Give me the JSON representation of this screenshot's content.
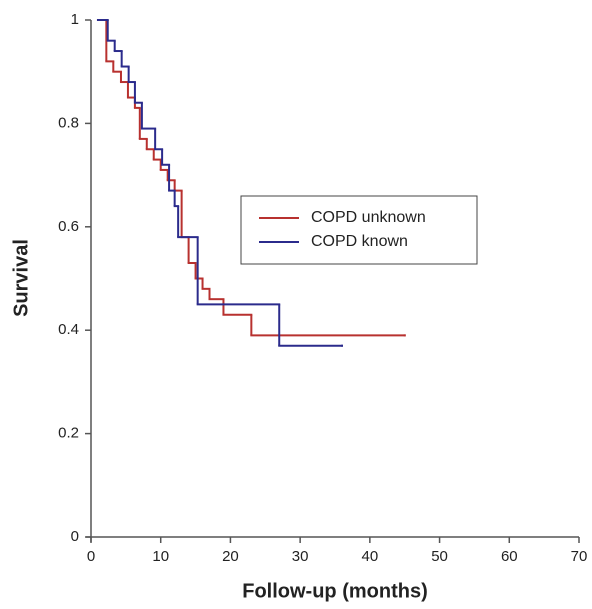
{
  "chart_data": {
    "type": "step",
    "xlabel": "Follow-up (months)",
    "ylabel": "Survival",
    "xlim": [
      0,
      70
    ],
    "xticks": [
      0,
      10,
      20,
      30,
      40,
      50,
      60,
      70
    ],
    "ylim": [
      0,
      1
    ],
    "yticks": [
      0,
      0.2,
      0.4,
      0.6,
      0.8,
      1
    ],
    "legend": "center",
    "series": [
      {
        "name": "COPD unknown",
        "color": "#b8312f",
        "x": [
          1,
          2.2,
          3.2,
          4.3,
          5.3,
          6.3,
          7,
          8,
          9,
          10,
          11,
          12,
          13,
          14,
          15,
          16,
          17,
          19,
          23,
          45
        ],
        "values": [
          1,
          0.92,
          0.9,
          0.88,
          0.85,
          0.83,
          0.77,
          0.75,
          0.73,
          0.71,
          0.69,
          0.67,
          0.58,
          0.53,
          0.5,
          0.48,
          0.46,
          0.43,
          0.39,
          0.39
        ]
      },
      {
        "name": "COPD known",
        "color": "#2b2b8c",
        "x": [
          1,
          2.4,
          3.4,
          4.4,
          5.4,
          6.3,
          7.3,
          9.2,
          10.2,
          11.2,
          12,
          12.5,
          15.3,
          27,
          36
        ],
        "values": [
          1,
          0.96,
          0.94,
          0.91,
          0.88,
          0.84,
          0.79,
          0.75,
          0.72,
          0.67,
          0.64,
          0.58,
          0.45,
          0.37,
          0.37
        ]
      }
    ]
  }
}
